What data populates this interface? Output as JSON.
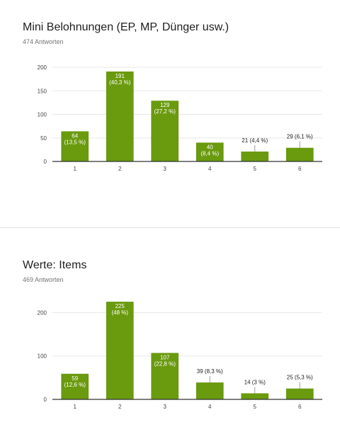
{
  "questions": [
    {
      "title": "Mini Belohnungen (EP, MP, Dünger usw.)",
      "responses": "474 Antworten"
    },
    {
      "title": "Werte: Items",
      "responses": "469 Antworten"
    }
  ],
  "colors": {
    "bar": "#6a9a0e",
    "grid": "#e8e8e8",
    "axis": "#333333",
    "inside_label": "#ffffff",
    "outside_label": "#212121"
  },
  "chart_data": [
    {
      "type": "bar",
      "categories": [
        "1",
        "2",
        "3",
        "4",
        "5",
        "6"
      ],
      "values": [
        64,
        191,
        129,
        40,
        21,
        29
      ],
      "bar_labels": [
        "64\n(13,5 %)",
        "191\n(40,3 %)",
        "129\n(27,2 %)",
        "40\n(8,4 %)",
        "21 (4,4 %)",
        "29 (6,1 %)"
      ],
      "yticks": [
        0,
        50,
        100,
        150,
        200
      ],
      "ylim": [
        0,
        200
      ],
      "grid": true,
      "legend": "none"
    },
    {
      "type": "bar",
      "categories": [
        "1",
        "2",
        "3",
        "4",
        "5",
        "6"
      ],
      "values": [
        59,
        225,
        107,
        39,
        14,
        25
      ],
      "bar_labels": [
        "59\n(12,6 %)",
        "225\n(48 %)",
        "107\n(22,8 %)",
        "39 (8,3 %)",
        "14 (3 %)",
        "25 (5,3 %)"
      ],
      "yticks": [
        0,
        100,
        200
      ],
      "ylim": [
        0,
        230
      ],
      "grid": true,
      "legend": "none"
    }
  ]
}
